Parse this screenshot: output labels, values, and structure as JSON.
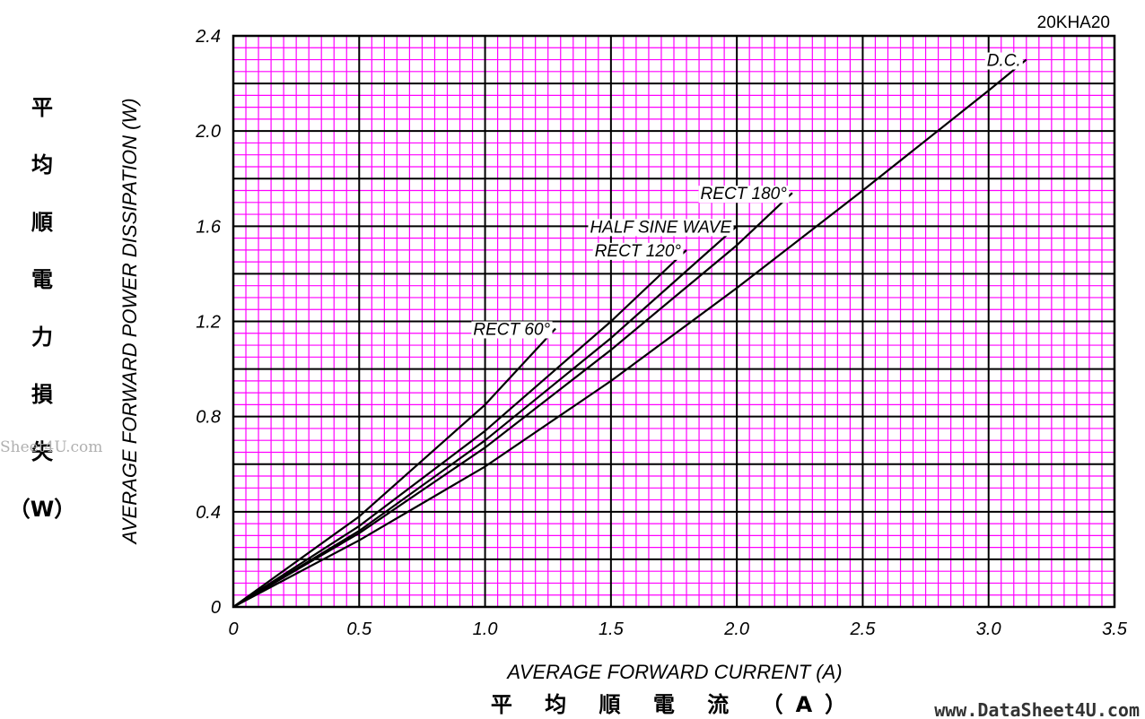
{
  "chart_data": {
    "type": "line",
    "model": "20KHA20",
    "xlabel": "AVERAGE FORWARD CURRENT (A)",
    "xlabel_cjk": "平 均 順 電 流 （A）",
    "ylabel": "AVERAGE FORWARD POWER DISSIPATION (W)",
    "ylabel_cjk": [
      "平",
      "均",
      "順",
      "電",
      "力",
      "損",
      "失",
      "（W）"
    ],
    "xlim": [
      0,
      3.5
    ],
    "ylim": [
      0,
      2.4
    ],
    "x_ticks": [
      0,
      0.5,
      1.0,
      1.5,
      2.0,
      2.5,
      3.0,
      3.5
    ],
    "x_tick_labels": [
      "0",
      "0.5",
      "1.0",
      "1.5",
      "2.0",
      "2.5",
      "3.0",
      "3.5"
    ],
    "y_ticks": [
      0,
      0.4,
      0.8,
      1.2,
      1.6,
      2.0,
      2.4
    ],
    "y_tick_labels": [
      "0",
      "0.4",
      "0.8",
      "1.2",
      "1.6",
      "2.0",
      "2.4"
    ],
    "grid": true,
    "series": [
      {
        "name": "D.C.",
        "x": [
          0,
          0.5,
          1.0,
          1.5,
          2.0,
          2.5,
          3.0,
          3.15
        ],
        "y": [
          0,
          0.28,
          0.59,
          0.95,
          1.34,
          1.75,
          2.17,
          2.3
        ]
      },
      {
        "name": "RECT 180°",
        "x": [
          0,
          0.5,
          1.0,
          1.5,
          2.0,
          2.22
        ],
        "y": [
          0,
          0.31,
          0.67,
          1.08,
          1.52,
          1.74
        ]
      },
      {
        "name": "HALF SINE WAVE",
        "x": [
          0,
          0.5,
          1.0,
          1.5,
          2.0
        ],
        "y": [
          0,
          0.32,
          0.7,
          1.13,
          1.6
        ]
      },
      {
        "name": "RECT 120°",
        "x": [
          0,
          0.5,
          1.0,
          1.5,
          1.8
        ],
        "y": [
          0,
          0.34,
          0.74,
          1.2,
          1.5
        ]
      },
      {
        "name": "RECT 60°",
        "x": [
          0,
          0.5,
          1.0,
          1.28
        ],
        "y": [
          0,
          0.38,
          0.85,
          1.17
        ]
      }
    ],
    "colors": {
      "grid_minor": "#ff00ff",
      "grid_major": "#000000",
      "curve": "#000000"
    }
  },
  "watermark_left": "Sheet4U.com",
  "watermark_right": "www.DataSheet4U.com"
}
